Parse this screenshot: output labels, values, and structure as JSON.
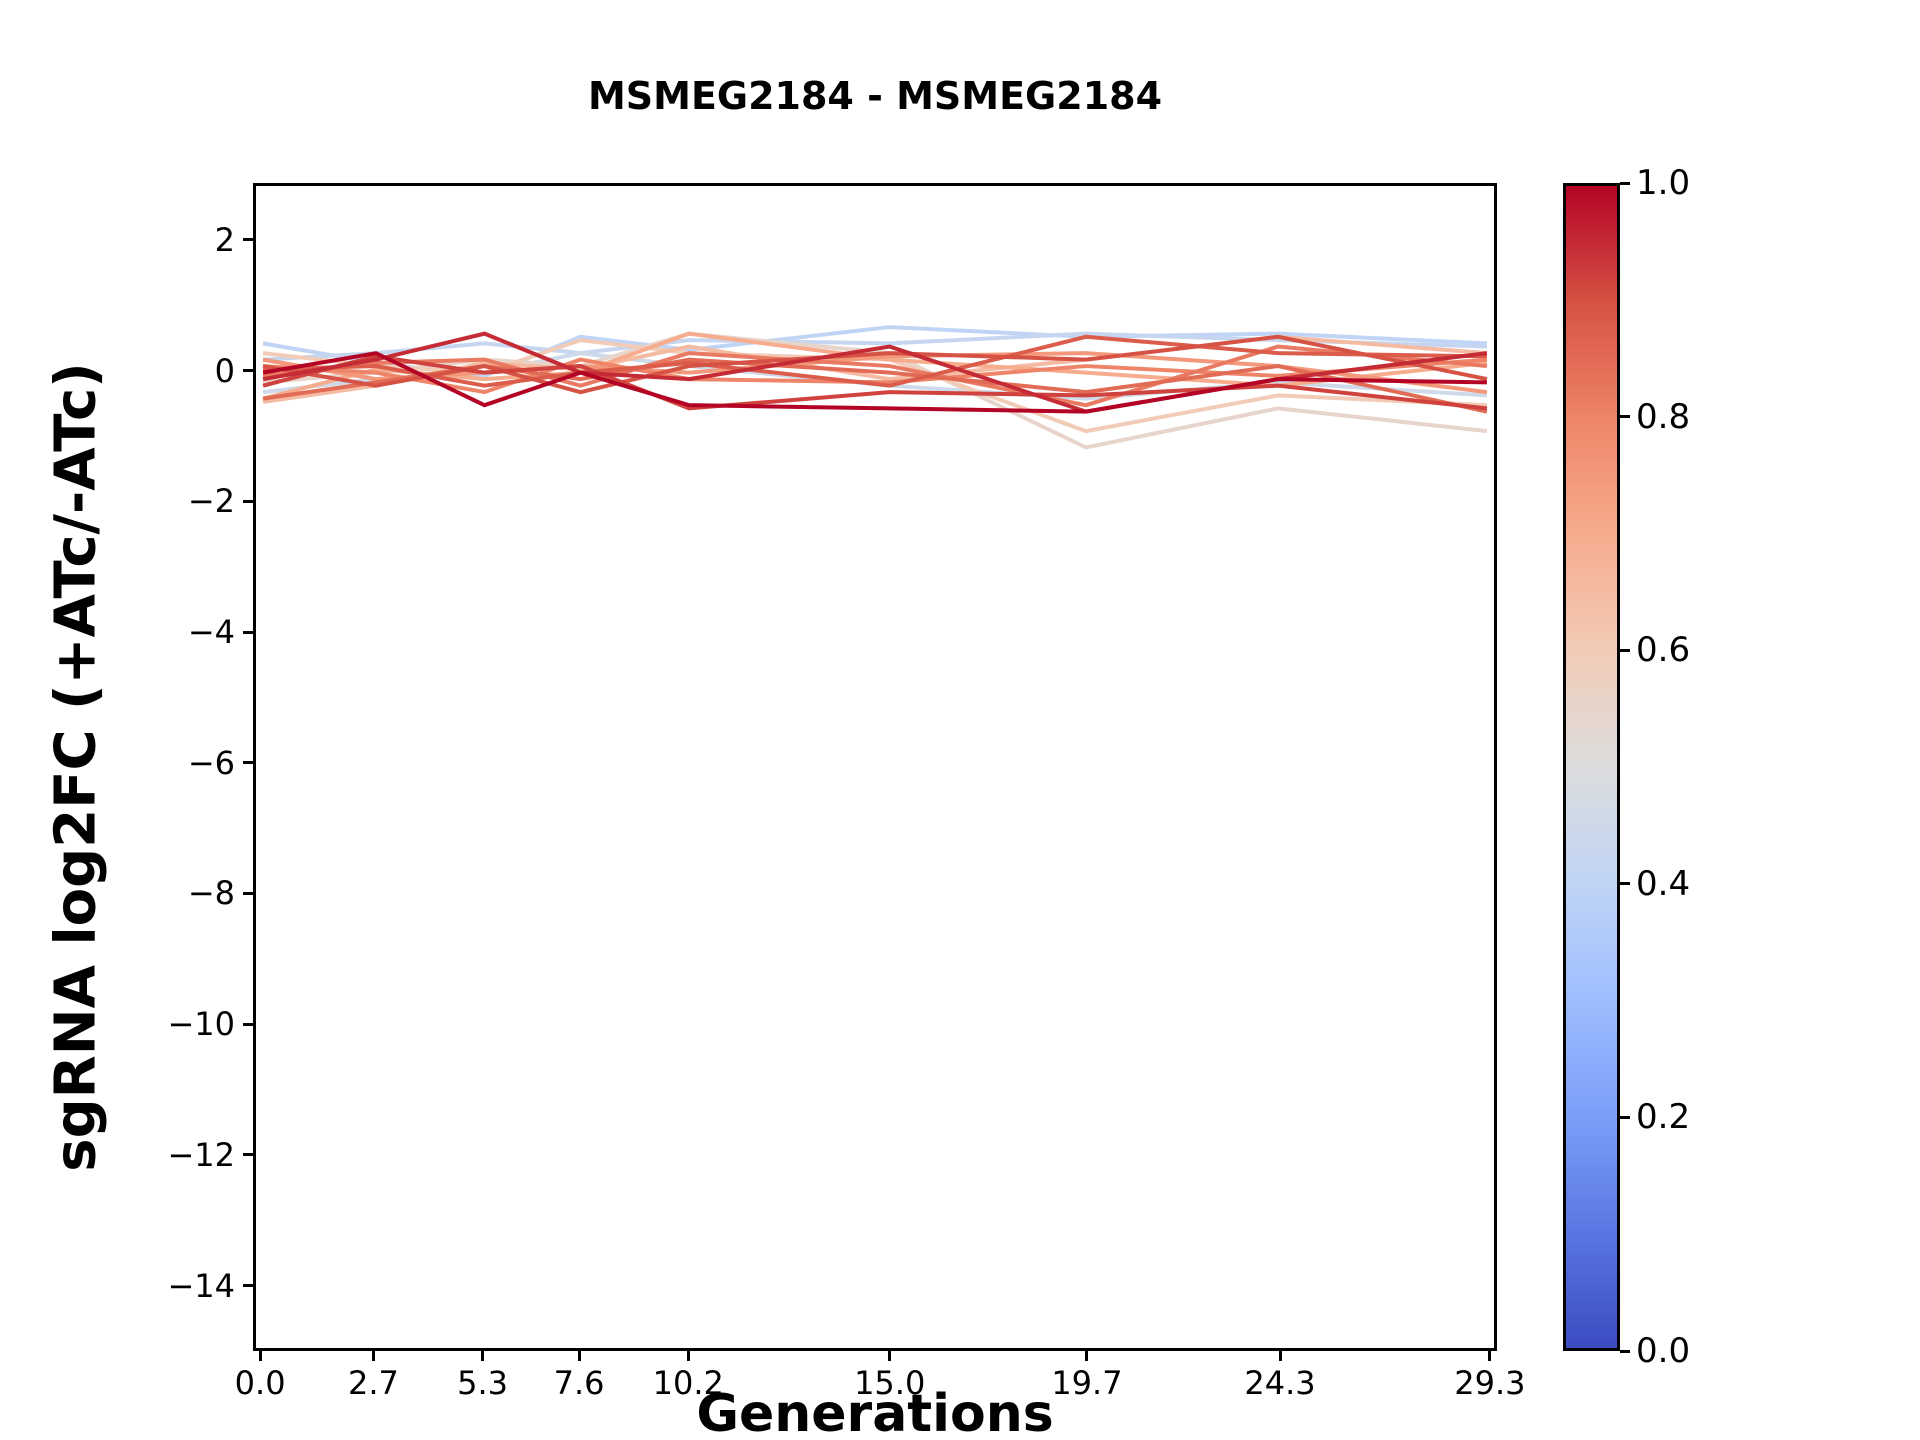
{
  "chart_data": {
    "type": "line",
    "title": "MSMEG2184 - MSMEG2184",
    "xlabel": "Generations",
    "ylabel": "sgRNA log2FC (+ATc/-ATc)",
    "grid": false,
    "legend": "none",
    "xlim": [
      -0.17,
      29.47
    ],
    "ylim": [
      -15.0,
      2.87
    ],
    "x": [
      0.0,
      2.7,
      5.3,
      7.6,
      10.2,
      15.0,
      19.7,
      24.3,
      29.3
    ],
    "xticks": [
      {
        "value": 0.0,
        "label": "0.0"
      },
      {
        "value": 2.7,
        "label": "2.7"
      },
      {
        "value": 5.3,
        "label": "5.3"
      },
      {
        "value": 7.6,
        "label": "7.6"
      },
      {
        "value": 10.2,
        "label": "10.2"
      },
      {
        "value": 15.0,
        "label": "15.0"
      },
      {
        "value": 19.7,
        "label": "19.7"
      },
      {
        "value": 24.3,
        "label": "24.3"
      },
      {
        "value": 29.3,
        "label": "29.3"
      }
    ],
    "yticks": [
      {
        "value": 2,
        "label": "2"
      },
      {
        "value": 0,
        "label": "0"
      },
      {
        "value": -2,
        "label": "−2"
      },
      {
        "value": -4,
        "label": "−4"
      },
      {
        "value": -6,
        "label": "−6"
      },
      {
        "value": -8,
        "label": "−8"
      },
      {
        "value": -10,
        "label": "−10"
      },
      {
        "value": -12,
        "label": "−12"
      },
      {
        "value": -14,
        "label": "−14"
      }
    ],
    "series": [
      {
        "color_value": 0.4,
        "values": [
          0.45,
          0.15,
          -0.05,
          0.55,
          0.35,
          0.7,
          0.55,
          0.6,
          0.45
        ]
      },
      {
        "color_value": 0.42,
        "values": [
          0.2,
          0.3,
          0.45,
          0.3,
          0.5,
          0.45,
          0.6,
          0.5,
          0.4
        ]
      },
      {
        "color_value": 0.45,
        "values": [
          -0.3,
          -0.1,
          0.0,
          0.3,
          0.1,
          -0.2,
          -0.4,
          -0.15,
          -0.35
        ]
      },
      {
        "color_value": 0.55,
        "values": [
          -0.15,
          0.0,
          0.2,
          0.1,
          0.6,
          0.3,
          -1.15,
          -0.55,
          -0.9
        ]
      },
      {
        "color_value": 0.6,
        "values": [
          0.3,
          0.1,
          0.0,
          0.5,
          0.3,
          0.2,
          -0.9,
          -0.35,
          -0.5
        ]
      },
      {
        "color_value": 0.65,
        "values": [
          -0.45,
          -0.2,
          0.15,
          0.05,
          0.4,
          -0.1,
          0.2,
          0.55,
          0.3
        ]
      },
      {
        "color_value": 0.7,
        "values": [
          -0.4,
          0.05,
          -0.1,
          0.0,
          0.6,
          0.2,
          0.0,
          -0.2,
          0.15
        ]
      },
      {
        "color_value": 0.75,
        "values": [
          0.2,
          -0.1,
          0.0,
          0.1,
          0.0,
          0.25,
          0.3,
          0.1,
          -0.3
        ]
      },
      {
        "color_value": 0.8,
        "values": [
          0.1,
          0.0,
          -0.3,
          0.2,
          -0.1,
          -0.15,
          0.1,
          -0.05,
          0.2
        ]
      },
      {
        "color_value": 0.82,
        "values": [
          -0.05,
          0.15,
          0.2,
          -0.2,
          0.3,
          0.1,
          -0.5,
          0.4,
          0.1
        ]
      },
      {
        "color_value": 0.85,
        "values": [
          -0.4,
          -0.15,
          0.1,
          -0.1,
          0.2,
          0.0,
          -0.3,
          0.1,
          -0.6
        ]
      },
      {
        "color_value": 0.88,
        "values": [
          0.05,
          0.1,
          -0.2,
          0.0,
          0.15,
          -0.2,
          0.55,
          0.3,
          0.25
        ]
      },
      {
        "color_value": 0.9,
        "values": [
          0.1,
          -0.2,
          0.1,
          -0.3,
          0.1,
          0.3,
          0.2,
          0.55,
          -0.1
        ]
      },
      {
        "color_value": 0.92,
        "values": [
          -0.2,
          0.25,
          0.0,
          0.1,
          -0.55,
          -0.3,
          -0.35,
          -0.2,
          -0.55
        ]
      },
      {
        "color_value": 0.95,
        "values": [
          -0.1,
          0.2,
          0.6,
          0.0,
          -0.1,
          0.4,
          -0.6,
          -0.1,
          0.3
        ]
      },
      {
        "color_value": 1.0,
        "values": [
          0.0,
          0.3,
          -0.5,
          0.0,
          -0.5,
          -0.55,
          -0.6,
          -0.1,
          -0.15
        ]
      }
    ],
    "colorbar": {
      "ticks": [
        {
          "value": 1.0,
          "label": "1.0"
        },
        {
          "value": 0.8,
          "label": "0.8"
        },
        {
          "value": 0.6,
          "label": "0.6"
        },
        {
          "value": 0.4,
          "label": "0.4"
        },
        {
          "value": 0.2,
          "label": "0.2"
        },
        {
          "value": 0.0,
          "label": "0.0"
        }
      ]
    },
    "colormap": {
      "name": "coolwarm",
      "stops": [
        {
          "t": 0.0,
          "color": "#3b4cc0"
        },
        {
          "t": 0.1,
          "color": "#5977e3"
        },
        {
          "t": 0.2,
          "color": "#7b9ff9"
        },
        {
          "t": 0.3,
          "color": "#9ebeff"
        },
        {
          "t": 0.4,
          "color": "#c0d4f5"
        },
        {
          "t": 0.5,
          "color": "#dcdddd"
        },
        {
          "t": 0.6,
          "color": "#f2cbb7"
        },
        {
          "t": 0.7,
          "color": "#f7ac8e"
        },
        {
          "t": 0.8,
          "color": "#ee8468"
        },
        {
          "t": 0.9,
          "color": "#d65244"
        },
        {
          "t": 1.0,
          "color": "#b40426"
        }
      ]
    }
  }
}
